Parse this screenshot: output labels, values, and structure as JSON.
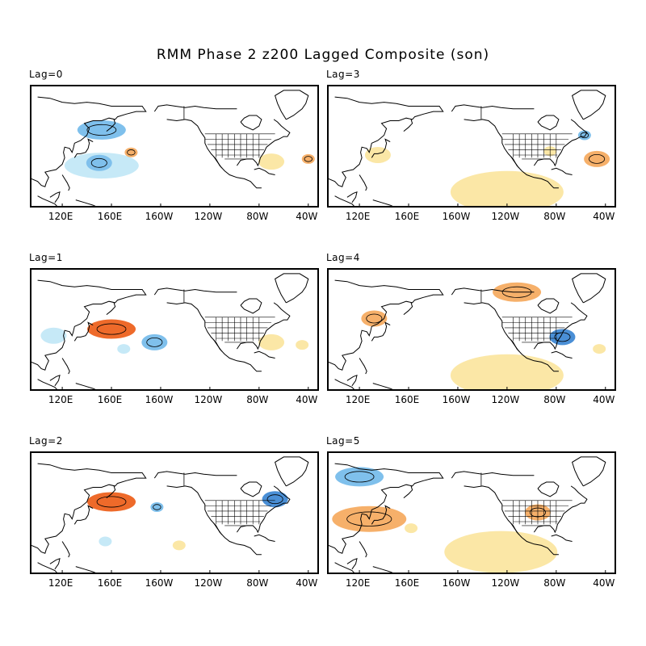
{
  "title": "RMM Phase 2 z200 Lagged Composite (son)",
  "colors": {
    "positive_light": "#fbe7a6",
    "positive_mid": "#f6b06a",
    "positive_strong": "#ee6a2a",
    "negative_light": "#c6e9f7",
    "negative_mid": "#7fc0ec",
    "negative_strong": "#4a8fd6",
    "coast": "#000000"
  },
  "x_ticks": [
    "120E",
    "160E",
    "160W",
    "120W",
    "80W",
    "40W"
  ],
  "panels": [
    {
      "label": "Lag=0",
      "anomalies": [
        {
          "lon": 152,
          "lat": 52,
          "sign": "neg",
          "level": 2,
          "size": "m"
        },
        {
          "lon": 152,
          "lat": 25,
          "sign": "neg",
          "level": 1,
          "size": "l"
        },
        {
          "lon": 150,
          "lat": 27,
          "sign": "neg",
          "level": 2,
          "size": "s"
        },
        {
          "lon": 176,
          "lat": 35,
          "sign": "pos",
          "level": 2,
          "size": "xs"
        },
        {
          "lon": 290,
          "lat": 28,
          "sign": "pos",
          "level": 1,
          "size": "s"
        },
        {
          "lon": 320,
          "lat": 30,
          "sign": "pos",
          "level": 2,
          "size": "xs"
        }
      ]
    },
    {
      "label": "Lag=3",
      "anomalies": [
        {
          "lon": 240,
          "lat": 5,
          "sign": "pos",
          "level": 1,
          "size": "xl"
        },
        {
          "lon": 135,
          "lat": 33,
          "sign": "pos",
          "level": 1,
          "size": "s"
        },
        {
          "lon": 313,
          "lat": 30,
          "sign": "pos",
          "level": 2,
          "size": "s"
        },
        {
          "lon": 303,
          "lat": 48,
          "sign": "neg",
          "level": 2,
          "size": "xs"
        },
        {
          "lon": 275,
          "lat": 36,
          "sign": "pos",
          "level": 1,
          "size": "xs"
        }
      ]
    },
    {
      "label": "Lag=1",
      "anomalies": [
        {
          "lon": 160,
          "lat": 40,
          "sign": "pos",
          "level": 3,
          "size": "m"
        },
        {
          "lon": 113,
          "lat": 35,
          "sign": "neg",
          "level": 1,
          "size": "s"
        },
        {
          "lon": 195,
          "lat": 30,
          "sign": "neg",
          "level": 2,
          "size": "s"
        },
        {
          "lon": 170,
          "lat": 25,
          "sign": "neg",
          "level": 1,
          "size": "xs"
        },
        {
          "lon": 290,
          "lat": 30,
          "sign": "pos",
          "level": 1,
          "size": "s"
        },
        {
          "lon": 315,
          "lat": 28,
          "sign": "pos",
          "level": 1,
          "size": "xs"
        }
      ]
    },
    {
      "label": "Lag=4",
      "anomalies": [
        {
          "lon": 240,
          "lat": 5,
          "sign": "pos",
          "level": 1,
          "size": "xl"
        },
        {
          "lon": 248,
          "lat": 68,
          "sign": "pos",
          "level": 2,
          "size": "m"
        },
        {
          "lon": 132,
          "lat": 48,
          "sign": "pos",
          "level": 2,
          "size": "s"
        },
        {
          "lon": 285,
          "lat": 34,
          "sign": "neg",
          "level": 3,
          "size": "s"
        },
        {
          "lon": 315,
          "lat": 25,
          "sign": "pos",
          "level": 1,
          "size": "xs"
        }
      ]
    },
    {
      "label": "Lag=2",
      "anomalies": [
        {
          "lon": 160,
          "lat": 48,
          "sign": "pos",
          "level": 3,
          "size": "m"
        },
        {
          "lon": 293,
          "lat": 50,
          "sign": "neg",
          "level": 3,
          "size": "s"
        },
        {
          "lon": 197,
          "lat": 44,
          "sign": "neg",
          "level": 2,
          "size": "xs"
        },
        {
          "lon": 215,
          "lat": 15,
          "sign": "pos",
          "level": 1,
          "size": "xs"
        },
        {
          "lon": 155,
          "lat": 18,
          "sign": "neg",
          "level": 1,
          "size": "xs"
        }
      ]
    },
    {
      "label": "Lag=5",
      "anomalies": [
        {
          "lon": 120,
          "lat": 67,
          "sign": "neg",
          "level": 2,
          "size": "m"
        },
        {
          "lon": 128,
          "lat": 35,
          "sign": "pos",
          "level": 2,
          "size": "l"
        },
        {
          "lon": 235,
          "lat": 10,
          "sign": "pos",
          "level": 1,
          "size": "xl"
        },
        {
          "lon": 265,
          "lat": 40,
          "sign": "pos",
          "level": 2,
          "size": "s"
        },
        {
          "lon": 162,
          "lat": 28,
          "sign": "pos",
          "level": 1,
          "size": "xs"
        }
      ]
    }
  ]
}
